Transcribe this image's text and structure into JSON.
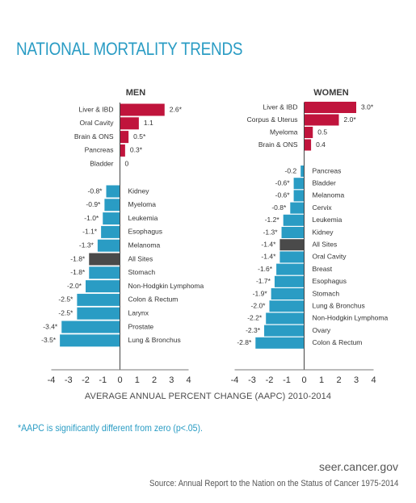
{
  "title": "NATIONAL MORTALITY TRENDS",
  "colors": {
    "positive": "#c0143c",
    "negative": "#2a9cc4",
    "all_sites": "#4a4a4a",
    "title": "#2a9cc4"
  },
  "chart_data": [
    {
      "type": "bar",
      "orientation": "horizontal",
      "title": "MEN",
      "xlim": [
        -4,
        4
      ],
      "xticks": [
        "-4",
        "-3",
        "-2",
        "-1",
        "0",
        "1",
        "2",
        "3",
        "4"
      ],
      "bars": [
        {
          "category": "Liver & IBD",
          "value": 2.6,
          "label": "2.6*",
          "group": "up"
        },
        {
          "category": "Oral Cavity",
          "value": 1.1,
          "label": "1.1",
          "group": "up"
        },
        {
          "category": "Brain & ONS",
          "value": 0.5,
          "label": "0.5*",
          "group": "up"
        },
        {
          "category": "Pancreas",
          "value": 0.3,
          "label": "0.3*",
          "group": "up"
        },
        {
          "category": "Bladder",
          "value": 0,
          "label": "0",
          "group": "up"
        },
        {
          "category": "Kidney",
          "value": -0.8,
          "label": "-0.8*",
          "group": "down"
        },
        {
          "category": "Myeloma",
          "value": -0.9,
          "label": "-0.9*",
          "group": "down"
        },
        {
          "category": "Leukemia",
          "value": -1.0,
          "label": "-1.0*",
          "group": "down"
        },
        {
          "category": "Esophagus",
          "value": -1.1,
          "label": "-1.1*",
          "group": "down"
        },
        {
          "category": "Melanoma",
          "value": -1.3,
          "label": "-1.3*",
          "group": "down"
        },
        {
          "category": "All Sites",
          "value": -1.8,
          "label": "-1.8*",
          "group": "down",
          "highlight": true
        },
        {
          "category": "Stomach",
          "value": -1.8,
          "label": "-1.8*",
          "group": "down"
        },
        {
          "category": "Non-Hodgkin Lymphoma",
          "value": -2.0,
          "label": "-2.0*",
          "group": "down"
        },
        {
          "category": "Colon & Rectum",
          "value": -2.5,
          "label": "-2.5*",
          "group": "down"
        },
        {
          "category": "Larynx",
          "value": -2.5,
          "label": "-2.5*",
          "group": "down"
        },
        {
          "category": "Prostate",
          "value": -3.4,
          "label": "-3.4*",
          "group": "down"
        },
        {
          "category": "Lung & Bronchus",
          "value": -3.5,
          "label": "-3.5*",
          "group": "down"
        }
      ]
    },
    {
      "type": "bar",
      "orientation": "horizontal",
      "title": "WOMEN",
      "xlim": [
        -4,
        4
      ],
      "xticks": [
        "-4",
        "-3",
        "-2",
        "-1",
        "0",
        "1",
        "2",
        "3",
        "4"
      ],
      "bars": [
        {
          "category": "Liver & IBD",
          "value": 3.0,
          "label": "3.0*",
          "group": "up"
        },
        {
          "category": "Corpus & Uterus",
          "value": 2.0,
          "label": "2.0*",
          "group": "up"
        },
        {
          "category": "Myeloma",
          "value": 0.5,
          "label": "0.5",
          "group": "up"
        },
        {
          "category": "Brain & ONS",
          "value": 0.4,
          "label": "0.4",
          "group": "up"
        },
        {
          "category": "Pancreas",
          "value": -0.2,
          "label": "-0.2",
          "group": "down"
        },
        {
          "category": "Bladder",
          "value": -0.6,
          "label": "-0.6*",
          "group": "down"
        },
        {
          "category": "Melanoma",
          "value": -0.6,
          "label": "-0.6*",
          "group": "down"
        },
        {
          "category": "Cervix",
          "value": -0.8,
          "label": "-0.8*",
          "group": "down"
        },
        {
          "category": "Leukemia",
          "value": -1.2,
          "label": "-1.2*",
          "group": "down"
        },
        {
          "category": "Kidney",
          "value": -1.3,
          "label": "-1.3*",
          "group": "down"
        },
        {
          "category": "All Sites",
          "value": -1.4,
          "label": "-1.4*",
          "group": "down",
          "highlight": true
        },
        {
          "category": "Oral Cavity",
          "value": -1.4,
          "label": "-1.4*",
          "group": "down"
        },
        {
          "category": "Breast",
          "value": -1.6,
          "label": "-1.6*",
          "group": "down"
        },
        {
          "category": "Esophagus",
          "value": -1.7,
          "label": "-1.7*",
          "group": "down"
        },
        {
          "category": "Stomach",
          "value": -1.9,
          "label": "-1.9*",
          "group": "down"
        },
        {
          "category": "Lung & Bronchus",
          "value": -2.0,
          "label": "-2.0*",
          "group": "down"
        },
        {
          "category": "Non-Hodgkin Lymphoma",
          "value": -2.2,
          "label": "-2.2*",
          "group": "down"
        },
        {
          "category": "Ovary",
          "value": -2.3,
          "label": "-2.3*",
          "group": "down"
        },
        {
          "category": "Colon & Rectum",
          "value": -2.8,
          "label": "-2.8*",
          "group": "down"
        }
      ]
    }
  ],
  "axis_title": "AVERAGE ANNUAL PERCENT CHANGE (AAPC) 2010-2014",
  "footnote": "*AAPC is significantly different from zero (p<.05).",
  "site": "seer.cancer.gov",
  "source": "Source: Annual Report to the Nation on the Status of Cancer 1975-2014"
}
